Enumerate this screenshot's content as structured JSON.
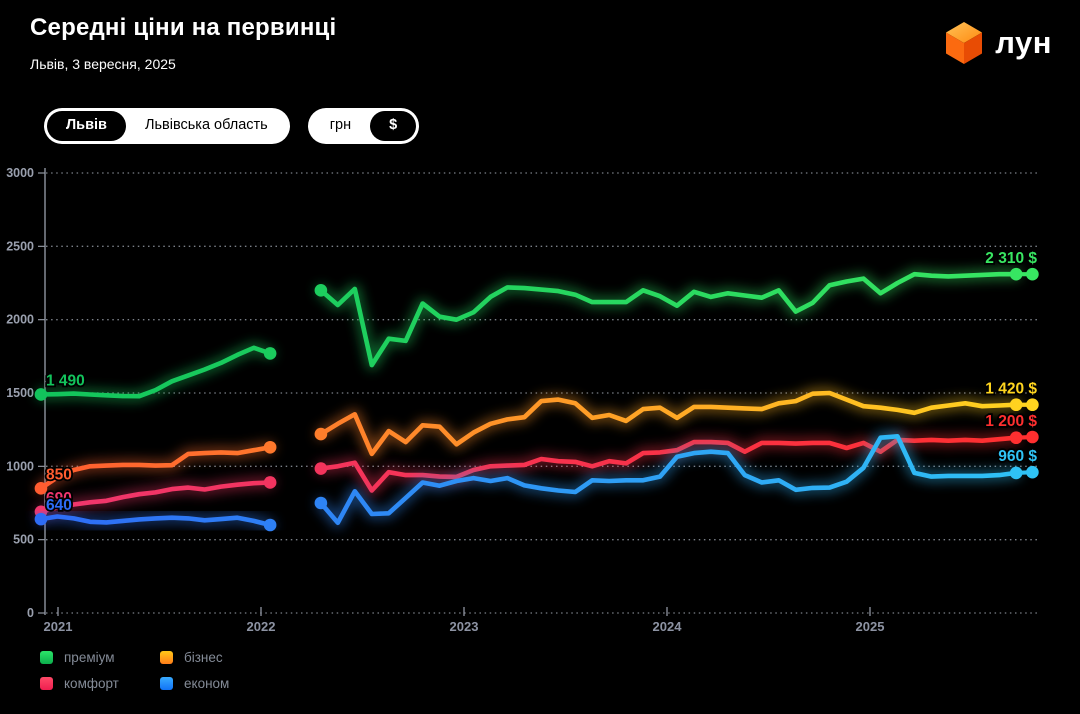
{
  "header": {
    "title": "Середні ціни на первинці",
    "subtitle": "Львів, 3 вересня, 2025",
    "logo_text": "лун",
    "logo_icon": "orange-cube-icon",
    "logo_colors": {
      "top": "#ff9420",
      "top_hi": "#ffc257",
      "left": "#fb6a10",
      "right": "#e84c04"
    }
  },
  "toggles": {
    "city": {
      "options": [
        "Львів",
        "Львівська область"
      ],
      "selected": 0
    },
    "currency": {
      "options": [
        "грн",
        "$"
      ],
      "selected": 1
    }
  },
  "chart_data": {
    "type": "line",
    "title": "Середні ціни на первинці",
    "xlabel": "",
    "ylabel": "",
    "ylim": [
      0,
      3000
    ],
    "xlim": [
      2020.9,
      2025.85
    ],
    "y_ticks": [
      0,
      500,
      1000,
      1500,
      2000,
      2500,
      3000
    ],
    "x_ticks": [
      2021,
      2022,
      2023,
      2024,
      2025
    ],
    "grid": "dotted horizontal",
    "legend_position": "bottom-left",
    "gap_note": "no data between early 2022 and mid 2022",
    "series": [
      {
        "key": "premium",
        "name": "преміум",
        "color_start": "#12c45c",
        "color_end": "#38e662",
        "start_label": "1 490",
        "end_label": "2 310 $",
        "pre_gap": {
          "t_start": 2020.916,
          "t_end": 2022.045,
          "values": [
            1490,
            1492,
            1496,
            1490,
            1484,
            1479,
            1478,
            1520,
            1580,
            1620,
            1660,
            1705,
            1760,
            1808,
            1770
          ]
        },
        "post_gap": {
          "t_start": 2022.295,
          "t_end": 2025.72,
          "values": [
            2200,
            2100,
            2210,
            1690,
            1870,
            1855,
            2110,
            2020,
            2000,
            2050,
            2155,
            2220,
            2215,
            2205,
            2195,
            2170,
            2120,
            2120,
            2120,
            2200,
            2160,
            2095,
            2190,
            2155,
            2180,
            2165,
            2150,
            2200,
            2055,
            2115,
            2235,
            2260,
            2280,
            2180,
            2250,
            2310,
            2300,
            2295,
            2300,
            2305,
            2310,
            2310
          ]
        },
        "current": {
          "t": 2025.8,
          "value": 2310
        }
      },
      {
        "key": "business",
        "name": "бізнес",
        "color_start": "#ff5c30",
        "color_end": "#ffd51f",
        "start_label": "850",
        "end_label": "1 420 $",
        "pre_gap": {
          "t_start": 2020.916,
          "t_end": 2022.045,
          "values": [
            850,
            925,
            975,
            1000,
            1005,
            1010,
            1010,
            1005,
            1008,
            1085,
            1090,
            1095,
            1090,
            1110,
            1130
          ]
        },
        "post_gap": {
          "t_start": 2022.295,
          "t_end": 2025.72,
          "values": [
            1220,
            1290,
            1355,
            1085,
            1240,
            1165,
            1280,
            1270,
            1150,
            1230,
            1290,
            1320,
            1335,
            1445,
            1455,
            1430,
            1330,
            1350,
            1310,
            1390,
            1400,
            1330,
            1405,
            1405,
            1400,
            1395,
            1390,
            1430,
            1445,
            1495,
            1500,
            1455,
            1410,
            1400,
            1385,
            1365,
            1400,
            1415,
            1430,
            1410,
            1415,
            1420
          ]
        },
        "current": {
          "t": 2025.8,
          "value": 1420
        }
      },
      {
        "key": "comfort",
        "name": "комфорт",
        "color_start": "#f0366e",
        "color_end": "#ff2f2f",
        "start_label": "690",
        "end_label": "1 200 $",
        "pre_gap": {
          "t_start": 2020.916,
          "t_end": 2022.045,
          "values": [
            690,
            720,
            740,
            755,
            765,
            790,
            810,
            822,
            845,
            855,
            842,
            862,
            875,
            885,
            890
          ]
        },
        "post_gap": {
          "t_start": 2022.295,
          "t_end": 2025.72,
          "values": [
            985,
            1000,
            1025,
            835,
            960,
            940,
            940,
            930,
            928,
            975,
            1000,
            1005,
            1010,
            1050,
            1035,
            1030,
            1000,
            1035,
            1020,
            1090,
            1095,
            1110,
            1165,
            1165,
            1160,
            1100,
            1160,
            1160,
            1155,
            1160,
            1160,
            1125,
            1160,
            1100,
            1180,
            1175,
            1180,
            1175,
            1180,
            1175,
            1185,
            1195
          ]
        },
        "current": {
          "t": 2025.8,
          "value": 1200
        }
      },
      {
        "key": "economy",
        "name": "економ",
        "color_start": "#2e6cf5",
        "color_end": "#2fc3f5",
        "start_label": "640",
        "end_label": "960 $",
        "pre_gap": {
          "t_start": 2020.916,
          "t_end": 2022.045,
          "values": [
            640,
            658,
            645,
            622,
            618,
            628,
            638,
            645,
            650,
            645,
            632,
            640,
            650,
            628,
            600
          ]
        },
        "post_gap": {
          "t_start": 2022.295,
          "t_end": 2025.72,
          "values": [
            750,
            615,
            830,
            675,
            680,
            785,
            890,
            868,
            900,
            920,
            900,
            920,
            870,
            850,
            835,
            825,
            905,
            900,
            905,
            905,
            930,
            1065,
            1090,
            1100,
            1090,
            940,
            890,
            905,
            840,
            853,
            855,
            895,
            990,
            1195,
            1205,
            955,
            930,
            935,
            935,
            935,
            940,
            955
          ]
        },
        "current": {
          "t": 2025.8,
          "value": 960
        }
      }
    ]
  },
  "legend": {
    "items": [
      {
        "label": "преміум",
        "color_top": "#2be469",
        "color_bottom": "#0cae4c"
      },
      {
        "label": "бізнес",
        "color_top": "#ffc818",
        "color_bottom": "#ff7d1a"
      },
      {
        "label": "комфорт",
        "color_top": "#ff4a68",
        "color_bottom": "#ef1e4f"
      },
      {
        "label": "економ",
        "color_top": "#38abff",
        "color_bottom": "#1173f6"
      }
    ]
  }
}
